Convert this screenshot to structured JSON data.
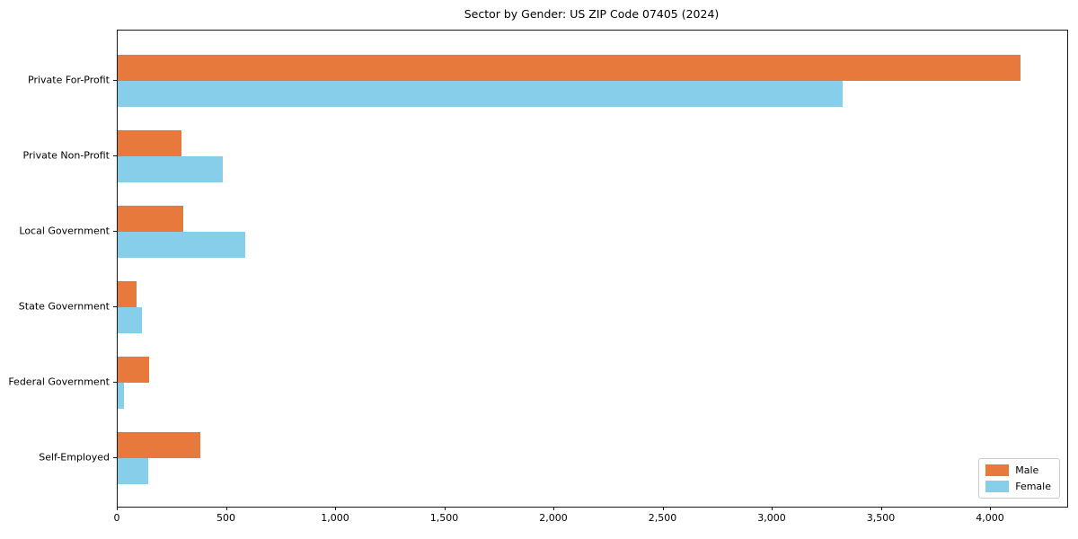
{
  "chart_data": {
    "type": "bar",
    "orientation": "horizontal",
    "title": "Sector by Gender: US ZIP Code 07405 (2024)",
    "categories": [
      "Private For-Profit",
      "Private Non-Profit",
      "Local Government",
      "State Government",
      "Federal Government",
      "Self-Employed"
    ],
    "series": [
      {
        "name": "Male",
        "color": "#e6793b",
        "values": [
          4135,
          290,
          300,
          85,
          145,
          380
        ]
      },
      {
        "name": "Female",
        "color": "#87ceeb",
        "values": [
          3320,
          480,
          585,
          110,
          28,
          140
        ]
      }
    ],
    "xlabel": "",
    "ylabel": "",
    "xlim": [
      0,
      4350
    ],
    "x_ticks": [
      0,
      500,
      1000,
      1500,
      2000,
      2500,
      3000,
      3500,
      4000
    ],
    "x_tick_labels": [
      "0",
      "500",
      "1,000",
      "1,500",
      "2,000",
      "2,500",
      "3,000",
      "3,500",
      "4,000"
    ],
    "grid": false,
    "legend_position": "lower right",
    "legend_entries": [
      "Male",
      "Female"
    ]
  }
}
